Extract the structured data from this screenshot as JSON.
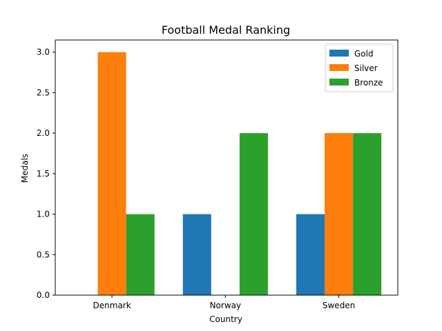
{
  "chart_data": {
    "type": "bar",
    "title": "Football Medal Ranking",
    "xlabel": "Country",
    "ylabel": "Medals",
    "categories": [
      "Denmark",
      "Norway",
      "Sweden"
    ],
    "series": [
      {
        "name": "Gold",
        "color": "#1f77b4",
        "values": [
          0,
          1,
          1
        ]
      },
      {
        "name": "Silver",
        "color": "#ff7f0e",
        "values": [
          3,
          0,
          2
        ]
      },
      {
        "name": "Bronze",
        "color": "#2ca02c",
        "values": [
          1,
          2,
          2
        ]
      }
    ],
    "ylim": [
      0,
      3.15
    ],
    "yticks": [
      "0.0",
      "0.5",
      "1.0",
      "1.5",
      "2.0",
      "2.5",
      "3.0"
    ],
    "grid": false,
    "legend_position": "top-right"
  }
}
